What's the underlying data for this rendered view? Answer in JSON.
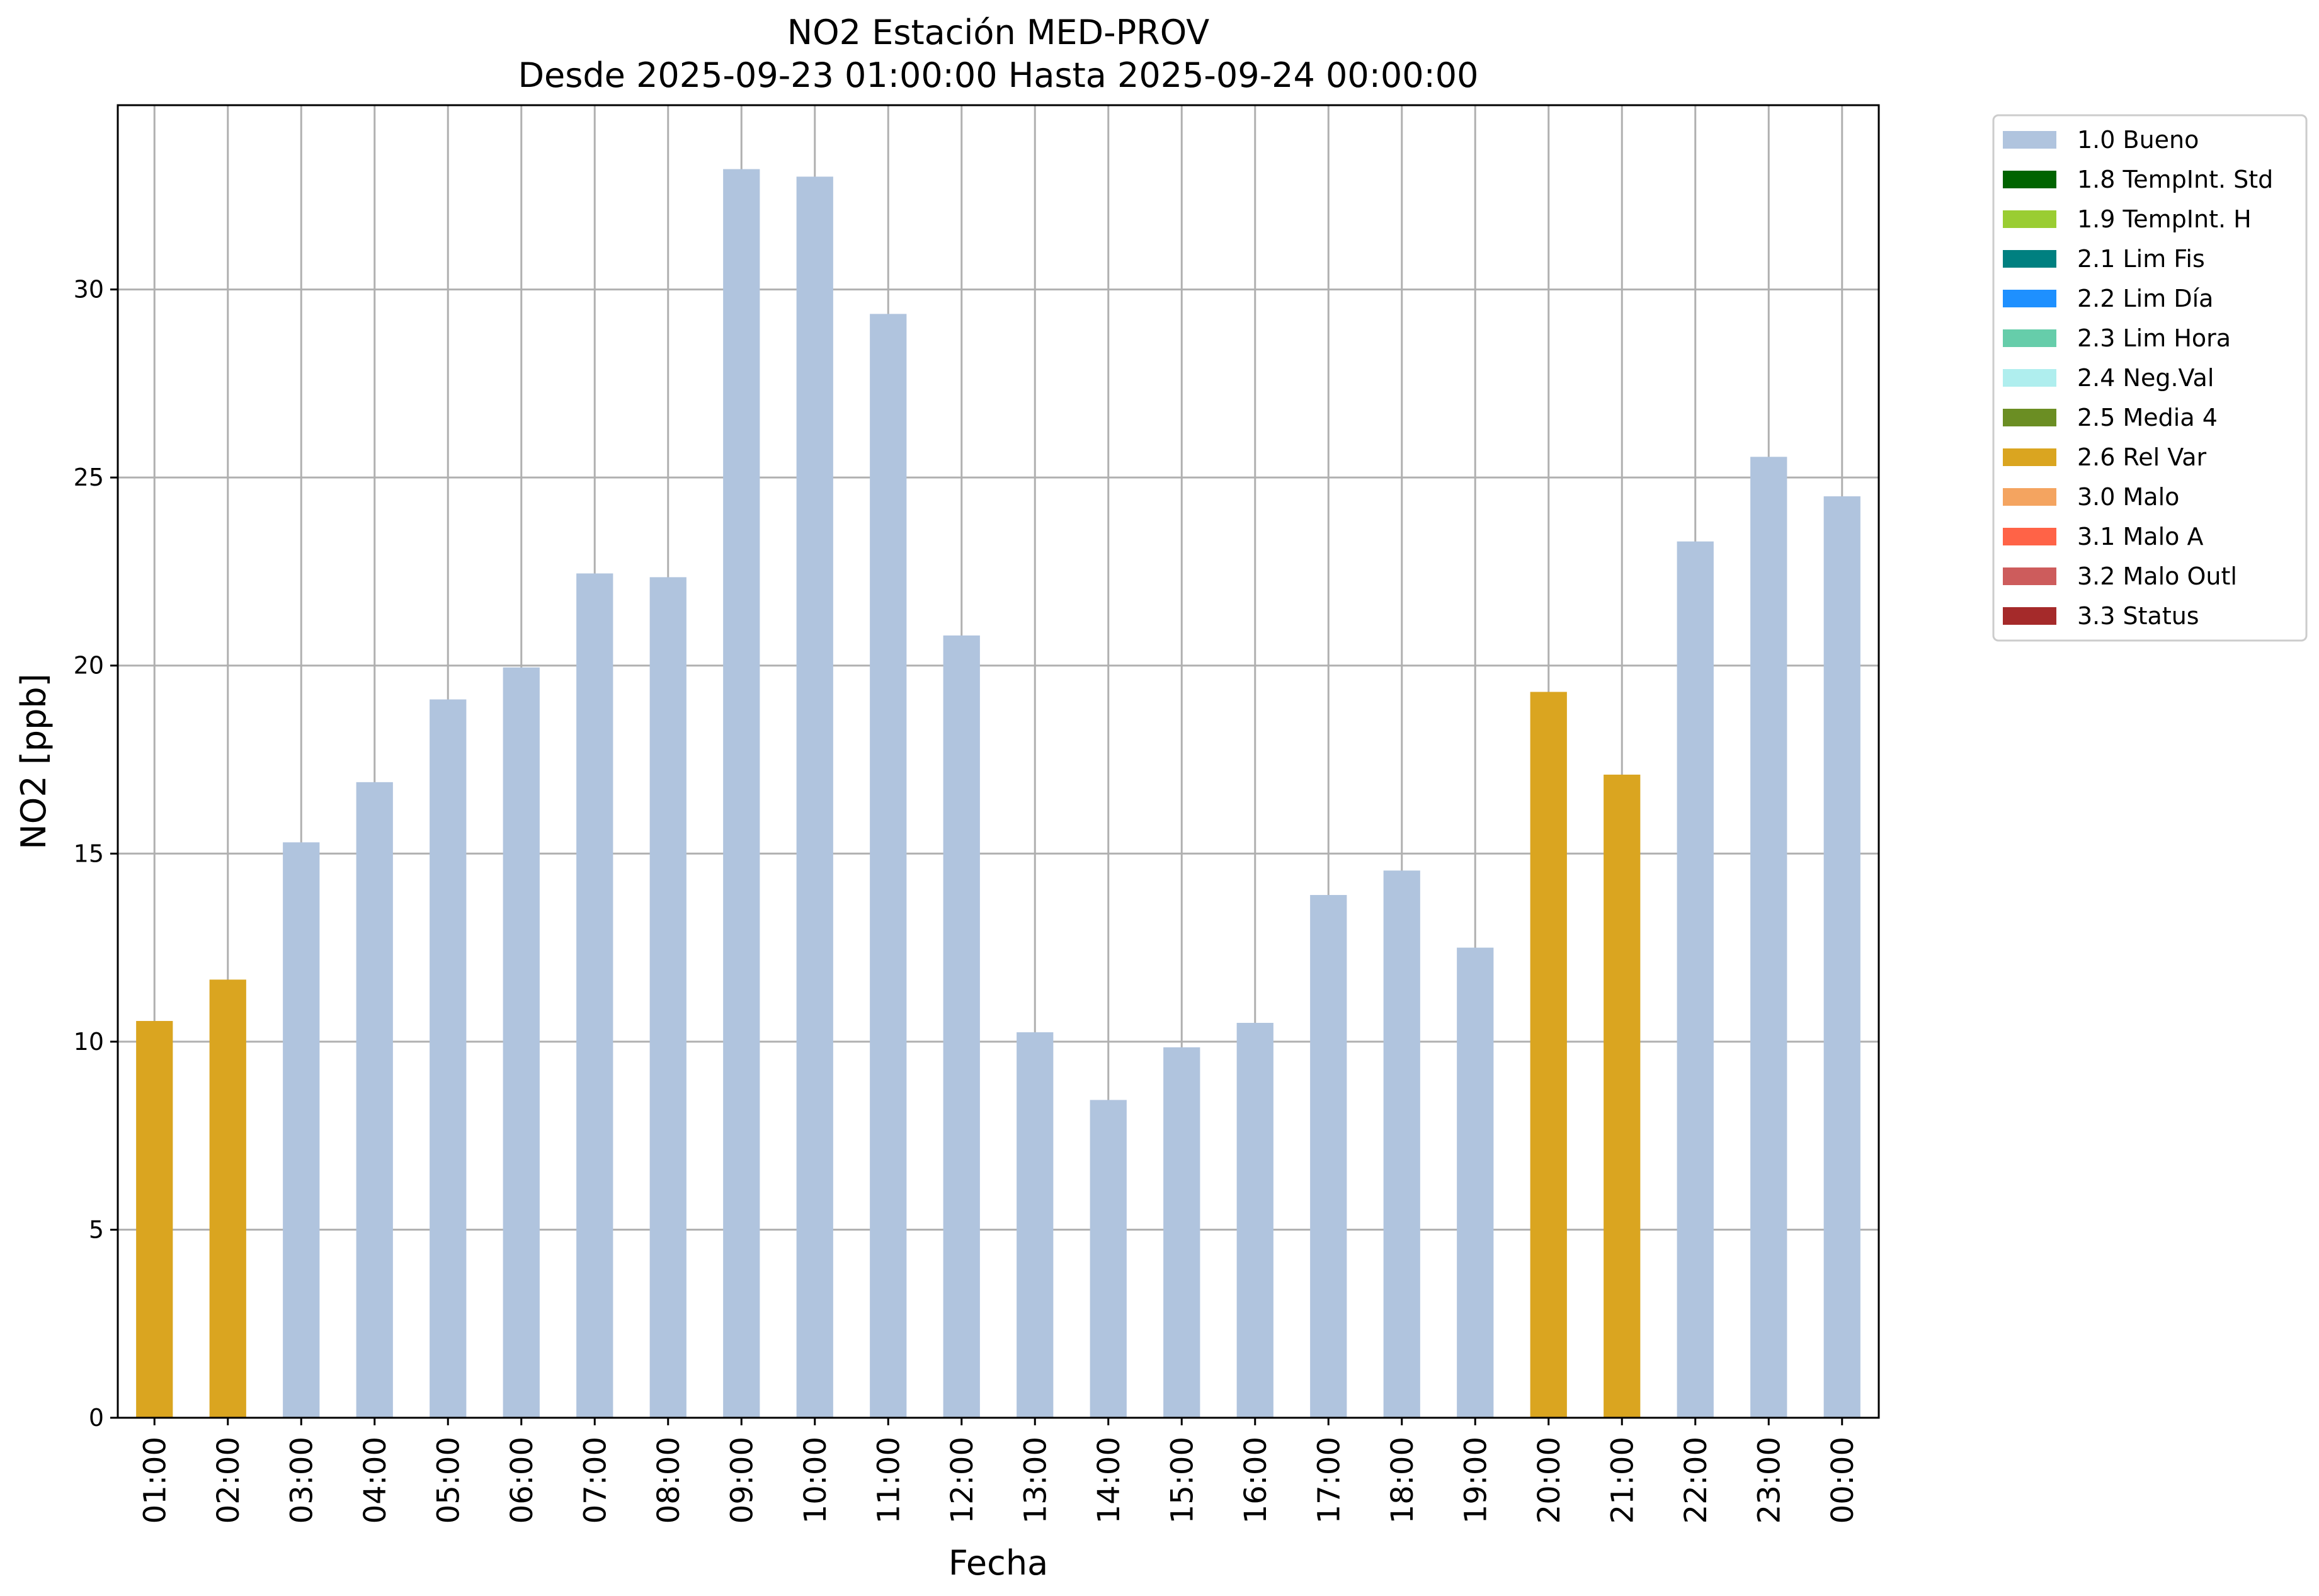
{
  "chart_data": {
    "type": "bar",
    "title": "NO2 Estación MED-PROV",
    "subtitle": "Desde 2025-09-23 01:00:00 Hasta 2025-09-24 00:00:00",
    "xlabel": "Fecha",
    "ylabel": "NO2 [ppb]",
    "ylim": [
      0,
      34.9
    ],
    "yticks": [
      "0",
      "5",
      "10",
      "15",
      "20",
      "25",
      "30"
    ],
    "grid": true,
    "legend_position": "outside-top-right",
    "categories": [
      "01:00",
      "02:00",
      "03:00",
      "04:00",
      "05:00",
      "06:00",
      "07:00",
      "08:00",
      "09:00",
      "10:00",
      "11:00",
      "12:00",
      "13:00",
      "14:00",
      "15:00",
      "16:00",
      "17:00",
      "18:00",
      "19:00",
      "20:00",
      "21:00",
      "22:00",
      "23:00",
      "00:00"
    ],
    "values": [
      10.55,
      11.65,
      15.3,
      16.9,
      19.1,
      19.95,
      22.45,
      22.35,
      33.2,
      33.0,
      29.35,
      20.8,
      10.25,
      8.45,
      9.85,
      10.5,
      13.9,
      14.55,
      12.5,
      19.3,
      17.1,
      23.3,
      25.55,
      24.5
    ],
    "flags": [
      "2.6 Rel Var",
      "2.6 Rel Var",
      "1.0 Bueno",
      "1.0 Bueno",
      "1.0 Bueno",
      "1.0 Bueno",
      "1.0 Bueno",
      "1.0 Bueno",
      "1.0 Bueno",
      "1.0 Bueno",
      "1.0 Bueno",
      "1.0 Bueno",
      "1.0 Bueno",
      "1.0 Bueno",
      "1.0 Bueno",
      "1.0 Bueno",
      "1.0 Bueno",
      "1.0 Bueno",
      "1.0 Bueno",
      "2.6 Rel Var",
      "2.6 Rel Var",
      "1.0 Bueno",
      "1.0 Bueno",
      "1.0 Bueno"
    ],
    "legend": [
      {
        "label": "1.0 Bueno",
        "color": "#b0c4de"
      },
      {
        "label": "1.8 TempInt. Std",
        "color": "#006400"
      },
      {
        "label": "1.9 TempInt. H",
        "color": "#9acd32"
      },
      {
        "label": "2.1 Lim Fis",
        "color": "#008080"
      },
      {
        "label": "2.2 Lim Día",
        "color": "#1e90ff"
      },
      {
        "label": "2.3 Lim Hora",
        "color": "#66cdaa"
      },
      {
        "label": "2.4 Neg.Val",
        "color": "#afeeee"
      },
      {
        "label": "2.5 Media 4",
        "color": "#6b8e23"
      },
      {
        "label": "2.6 Rel Var",
        "color": "#daa520"
      },
      {
        "label": "3.0 Malo",
        "color": "#f4a460"
      },
      {
        "label": "3.1 Malo A",
        "color": "#ff6347"
      },
      {
        "label": "3.2 Malo Outl",
        "color": "#cd5c5c"
      },
      {
        "label": "3.3 Status",
        "color": "#a52a2a"
      }
    ]
  }
}
